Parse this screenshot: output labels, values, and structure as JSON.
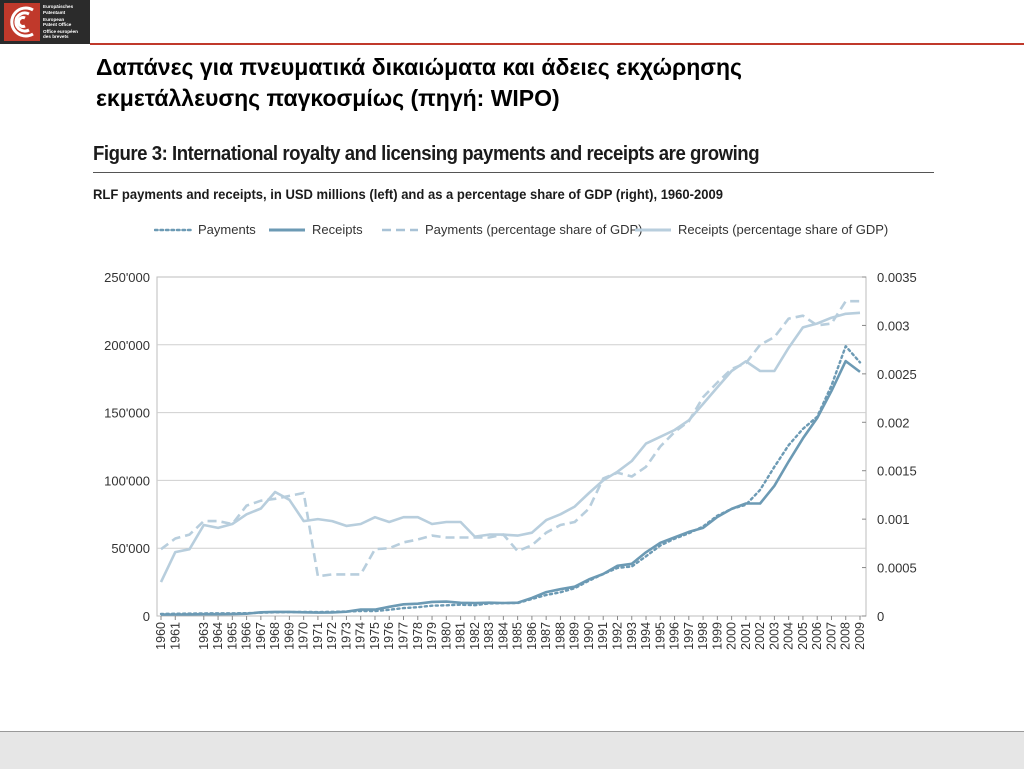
{
  "header": {
    "logo_lines": [
      "Europäisches",
      "Patentamt",
      "European",
      "Patent Office",
      "Office européen",
      "des brevets"
    ],
    "title_line1": "Δαπάνες για πνευματικά δικαιώματα και άδειες εκχώρησης",
    "title_line2": "εκμετάλλευσης παγκοσμίως (πηγή: WIPO)"
  },
  "colors": {
    "accent_red": "#c0392b",
    "series_dark": "#6c9ab4",
    "series_light": "#b8cedd",
    "logo_bg": "#2b2b2b"
  },
  "chart_data": {
    "type": "line",
    "title": "Figure 3: International royalty and licensing payments and receipts are growing",
    "subtitle": "RLF payments and receipts, in USD millions (left) and as a percentage share of GDP (right), 1960-2009",
    "x": [
      "1960",
      "1961",
      "1962",
      "1963",
      "1964",
      "1965",
      "1966",
      "1967",
      "1968",
      "1969",
      "1970",
      "1971",
      "1972",
      "1973",
      "1974",
      "1975",
      "1976",
      "1977",
      "1978",
      "1979",
      "1980",
      "1981",
      "1982",
      "1983",
      "1984",
      "1985",
      "1986",
      "1987",
      "1988",
      "1989",
      "1990",
      "1991",
      "1992",
      "1993",
      "1994",
      "1995",
      "1996",
      "1997",
      "1998",
      "1999",
      "2000",
      "2001",
      "2002",
      "2003",
      "2004",
      "2005",
      "2006",
      "2007",
      "2008",
      "2009"
    ],
    "x_tick_labels": [
      "1960",
      "1961",
      "1963",
      "1964",
      "1965",
      "1966",
      "1967",
      "1968",
      "1969",
      "1970",
      "1971",
      "1972",
      "1973",
      "1974",
      "1975",
      "1976",
      "1977",
      "1978",
      "1979",
      "1980",
      "1981",
      "1982",
      "1983",
      "1984",
      "1985",
      "1986",
      "1987",
      "1988",
      "1989",
      "1990",
      "1991",
      "1992",
      "1993",
      "1994",
      "1995",
      "1996",
      "1997",
      "1998",
      "1999",
      "2000",
      "2001",
      "2002",
      "2003",
      "2004",
      "2005",
      "2006",
      "2007",
      "2008",
      "2009"
    ],
    "y_left_ticks": [
      "0",
      "50'000",
      "100'000",
      "150'000",
      "200'000",
      "250'000"
    ],
    "y_right_ticks": [
      "0",
      "0.0005",
      "0.001",
      "0.0015",
      "0.002",
      "0.0025",
      "0.003",
      "0.0035"
    ],
    "ylim_left": [
      0,
      250000
    ],
    "ylim_right": [
      0,
      0.0035
    ],
    "grid": "horizontal",
    "legend_placement": "top",
    "series": [
      {
        "name": "Payments",
        "axis": "left",
        "style": "dotted",
        "color": "#6c9ab4",
        "values": [
          1500,
          1700,
          1800,
          1900,
          2000,
          2000,
          2100,
          2400,
          2700,
          2900,
          3000,
          2900,
          3100,
          3300,
          3700,
          3600,
          4600,
          5800,
          6500,
          7600,
          7900,
          8300,
          8000,
          9200,
          9500,
          9500,
          12500,
          15500,
          17500,
          20500,
          26000,
          31000,
          35500,
          36500,
          44000,
          52000,
          57000,
          61000,
          66000,
          74000,
          79000,
          82000,
          93000,
          110000,
          126000,
          138000,
          147000,
          170000,
          199000,
          187000
        ]
      },
      {
        "name": "Receipts",
        "axis": "left",
        "style": "solid",
        "color": "#6c9ab4",
        "values": [
          1000,
          1100,
          1200,
          1300,
          1300,
          1400,
          1700,
          2700,
          3000,
          3000,
          2700,
          2500,
          2600,
          3200,
          4800,
          4700,
          6800,
          8600,
          9100,
          10400,
          10600,
          9700,
          9600,
          9800,
          9600,
          9800,
          13300,
          17600,
          19800,
          21600,
          27000,
          31000,
          37000,
          38500,
          47000,
          54000,
          58000,
          62000,
          65000,
          73000,
          79000,
          83000,
          83000,
          96000,
          114000,
          131000,
          146000,
          166000,
          188000,
          180000
        ]
      },
      {
        "name": "Payments (percentage share of GDP)",
        "axis": "right",
        "style": "dashed",
        "color": "#b8cedd",
        "values": [
          0.00069,
          0.0008,
          0.00084,
          0.00098,
          0.00098,
          0.00095,
          0.00114,
          0.00119,
          0.00121,
          0.00124,
          0.00127,
          0.00041,
          0.00043,
          0.00043,
          0.00043,
          0.00069,
          0.0007,
          0.00076,
          0.00079,
          0.00083,
          0.00081,
          0.00081,
          0.00081,
          0.00081,
          0.00084,
          0.00067,
          0.00073,
          0.00086,
          0.00094,
          0.00097,
          0.00111,
          0.00142,
          0.00148,
          0.00144,
          0.00154,
          0.00175,
          0.0019,
          0.00201,
          0.00226,
          0.00241,
          0.00255,
          0.00261,
          0.0028,
          0.00288,
          0.00307,
          0.0031,
          0.003,
          0.00302,
          0.00325,
          0.00325
        ]
      },
      {
        "name": "Receipts (percentage share of GDP)",
        "axis": "right",
        "style": "solid",
        "color": "#b8cedd",
        "values": [
          0.00035,
          0.00066,
          0.00069,
          0.00094,
          0.00091,
          0.00095,
          0.00105,
          0.00111,
          0.00128,
          0.0012,
          0.00098,
          0.001,
          0.00098,
          0.00093,
          0.00095,
          0.00102,
          0.00097,
          0.00102,
          0.00102,
          0.00095,
          0.00097,
          0.00097,
          0.00082,
          0.00084,
          0.00084,
          0.00083,
          0.00086,
          0.00099,
          0.00105,
          0.00113,
          0.00127,
          0.0014,
          0.00149,
          0.0016,
          0.00178,
          0.00185,
          0.00192,
          0.00202,
          0.00219,
          0.00236,
          0.00253,
          0.00263,
          0.00253,
          0.00253,
          0.00277,
          0.00298,
          0.00302,
          0.00308,
          0.00312,
          0.00313
        ]
      }
    ]
  }
}
